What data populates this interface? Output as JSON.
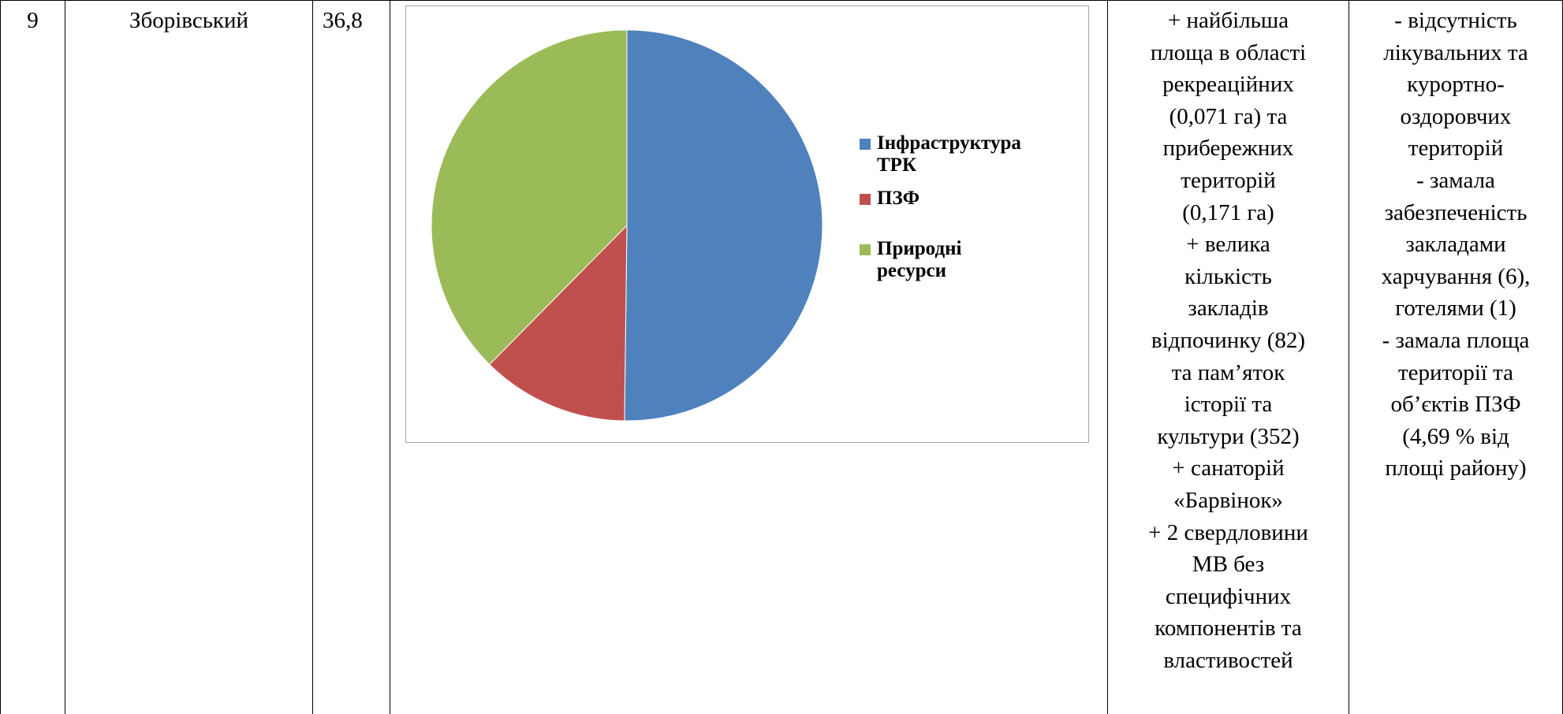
{
  "row": {
    "number": "9",
    "district": "Зборівський",
    "value": "36,8",
    "advantages_lines": [
      "+ найбільша",
      "площа в області",
      "рекреаційних",
      "(0,071 га) та",
      "прибережних",
      "територій",
      "(0,171 га)",
      "+ велика",
      "кількість",
      "закладів",
      "відпочинку (82)",
      "та пам’яток",
      "історії та",
      "культури (352)",
      "+ санаторій",
      "«Барвінок»",
      "+ 2 свердловини",
      "МВ без",
      "специфічних",
      "компонентів та",
      "властивостей"
    ],
    "disadvantages_lines": [
      "- відсутність",
      "лікувальних та",
      "курортно-",
      "оздоровчих",
      "територій",
      "- замала",
      "забезпеченість",
      "закладами",
      "харчування (6),",
      "готелями (1)",
      "- замала площа",
      "території та",
      "об’єктів ПЗФ",
      "(4,69 % від",
      "площі району)"
    ]
  },
  "chart_data": {
    "type": "pie",
    "title": "",
    "slices": [
      {
        "label": "Інфраструктура ТРК",
        "label_lines": [
          "Інфраструктура",
          "ТРК"
        ],
        "value": 50.2,
        "color": "#4f81bd"
      },
      {
        "label": "ПЗФ",
        "label_lines": [
          "ПЗФ"
        ],
        "value": 12.2,
        "color": "#c0504d"
      },
      {
        "label": "Природні ресурси",
        "label_lines": [
          "Природні",
          "ресурси"
        ],
        "value": 37.6,
        "color": "#9bbb59"
      }
    ],
    "legend_position": "right"
  }
}
